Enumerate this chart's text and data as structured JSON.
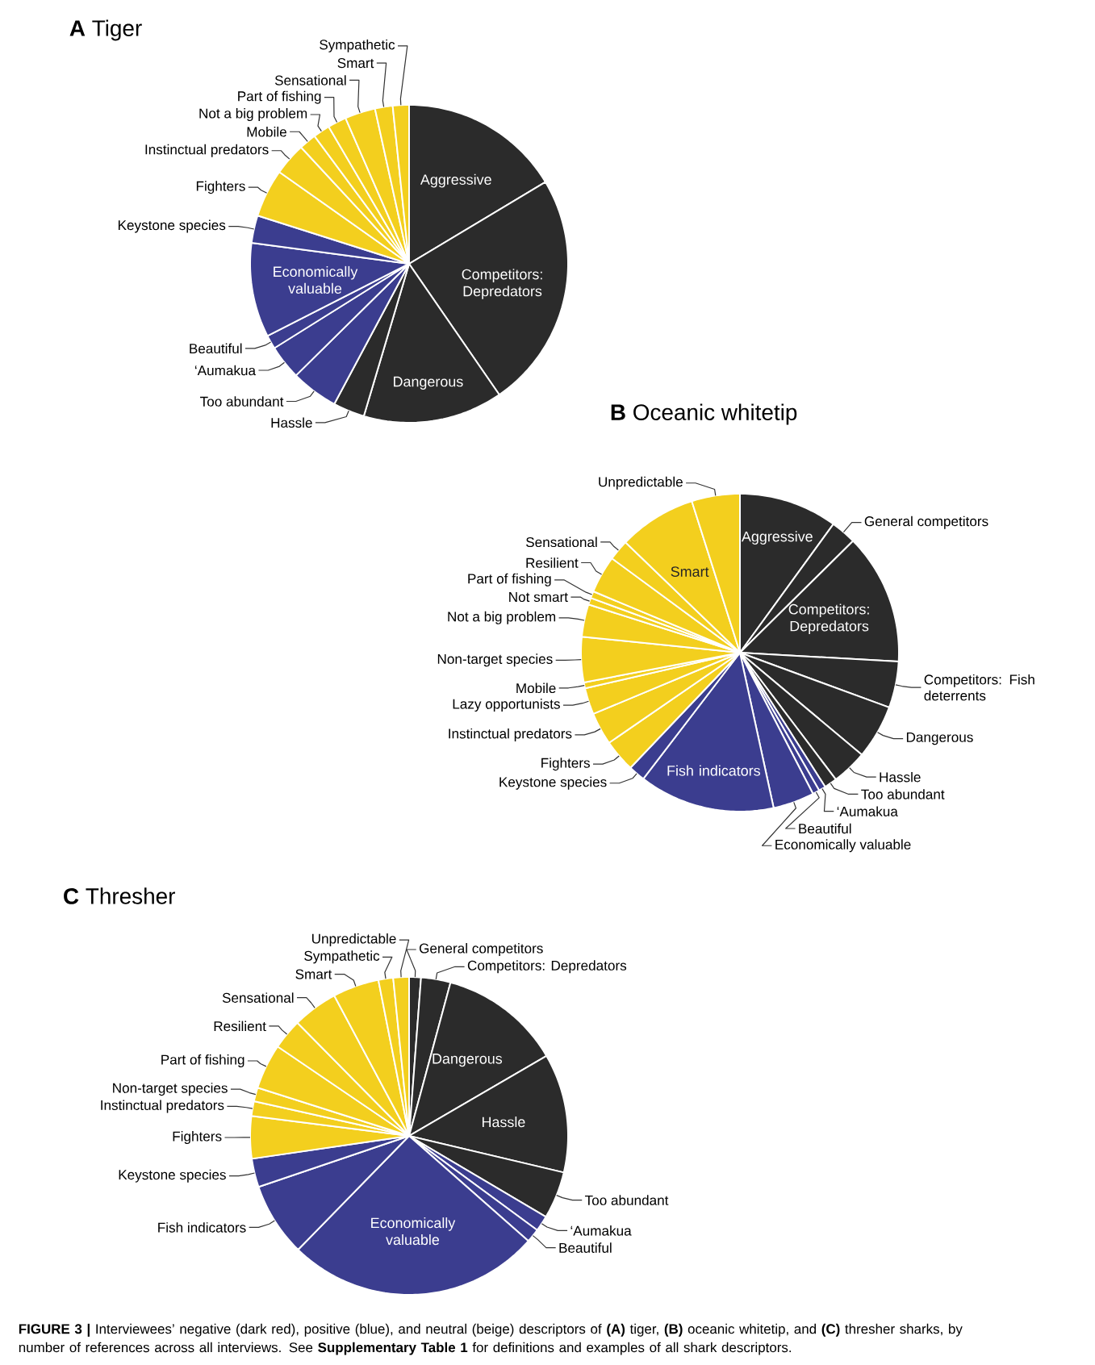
{
  "chart_data": [
    {
      "type": "pie",
      "title": "**A** Tiger",
      "categories": [
        "Aggressive",
        "Competitors: Depredators",
        "Dangerous",
        "Hassle",
        "Too abundant",
        "‘Aumakua",
        "Beautiful",
        "Economically valuable",
        "Keystone species",
        "Fighters",
        "Instinctual predators",
        "Mobile",
        "Not a big problem",
        "Part of fishing",
        "Sensational",
        "Smart",
        "Sympathetic"
      ],
      "values": [
        16.4,
        24,
        14.2,
        3.2,
        4.8,
        3.5,
        1.4,
        9.6,
        2.8,
        4.9,
        3.3,
        1.75,
        1.7,
        1.9,
        3.1,
        1.8,
        1.65
      ],
      "colors": [
        "#2b2b2b",
        "#2b2b2b",
        "#2b2b2b",
        "#2b2b2b",
        "#3b3d8f",
        "#3b3d8f",
        "#3b3d8f",
        "#3b3d8f",
        "#3b3d8f",
        "#f3cf1e",
        "#f3cf1e",
        "#f3cf1e",
        "#f3cf1e",
        "#f3cf1e",
        "#f3cf1e",
        "#f3cf1e",
        "#f3cf1e"
      ]
    },
    {
      "type": "pie",
      "title": "**B** Oceanic whitetip",
      "categories": [
        "Aggressive",
        "General competitors",
        "Competitors: Depredators",
        "Competitors: Fish deterrents",
        "Dangerous",
        "Hassle",
        "Too abundant",
        "‘Aumakua",
        "Beautiful",
        "Economically valuable",
        "Fish indicators",
        "Keystone species",
        "Fighters",
        "Instinctual predators",
        "Lazy opportunists",
        "Mobile",
        "Non-target species",
        "Not a big problem",
        "Not smart",
        "Part of fishing",
        "Resilient",
        "Sensational",
        "Smart",
        "Unpredictable"
      ],
      "values": [
        10,
        2.6,
        13.3,
        4.7,
        5.5,
        3.6,
        1.3,
        0.7,
        0.7,
        4.2,
        13.8,
        1.7,
        3.3,
        3.3,
        2.7,
        0.6,
        4.6,
        3.3,
        0.7,
        0.7,
        3.8,
        2.1,
        7.9,
        4.9
      ],
      "colors": [
        "#2b2b2b",
        "#2b2b2b",
        "#2b2b2b",
        "#2b2b2b",
        "#2b2b2b",
        "#2b2b2b",
        "#2b2b2b",
        "#3b3d8f",
        "#3b3d8f",
        "#3b3d8f",
        "#3b3d8f",
        "#3b3d8f",
        "#f3cf1e",
        "#f3cf1e",
        "#f3cf1e",
        "#f3cf1e",
        "#f3cf1e",
        "#f3cf1e",
        "#f3cf1e",
        "#f3cf1e",
        "#f3cf1e",
        "#f3cf1e",
        "#f3cf1e",
        "#f3cf1e"
      ]
    },
    {
      "type": "pie",
      "title": "**C** Thresher",
      "categories": [
        "General competitors",
        "Competitors: Depredators",
        "Dangerous",
        "Hassle",
        "Too abundant",
        "‘Aumakua",
        "Beautiful",
        "Economically valuable",
        "Fish indicators",
        "Keystone species",
        "Fighters",
        "Instinctual predators",
        "Non-target species",
        "Part of fishing",
        "Resilient",
        "Sensational",
        "Smart",
        "Sympathetic",
        "Unpredictable"
      ],
      "values": [
        1.2,
        3,
        12.4,
        12.1,
        4.8,
        1.6,
        1.4,
        25.8,
        7.5,
        2.9,
        4.3,
        1.5,
        1.4,
        4.6,
        3.1,
        4.6,
        4.7,
        1.5,
        1.6
      ],
      "colors": [
        "#2b2b2b",
        "#2b2b2b",
        "#2b2b2b",
        "#2b2b2b",
        "#2b2b2b",
        "#3b3d8f",
        "#3b3d8f",
        "#3b3d8f",
        "#3b3d8f",
        "#3b3d8f",
        "#f3cf1e",
        "#f3cf1e",
        "#f3cf1e",
        "#f3cf1e",
        "#f3cf1e",
        "#f3cf1e",
        "#f3cf1e",
        "#f3cf1e",
        "#f3cf1e"
      ],
      "annotations": [
        "**FIGURE 3 |** Interviewees’ negative (dark red), positive (blue), and neutral (beige) descriptors of **(A)** tiger, **(B)** oceanic whitetip, and **(C)** thresher sharks, by number of references across all interviews. See **Supplementary Table 1** for definitions and examples of all shark descriptors."
      ]
    }
  ]
}
